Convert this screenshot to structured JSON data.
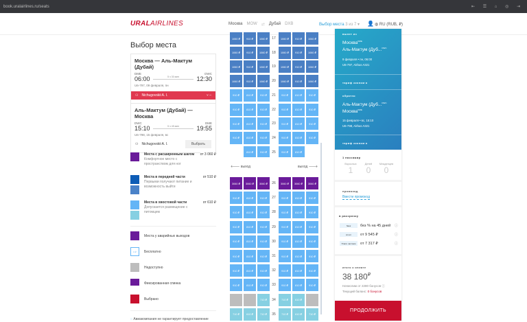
{
  "browser": {
    "url": "book.uralairlines.ru/seats",
    "icons": "⇤ ☰ ⌂ ◎ ⇥"
  },
  "header": {
    "logo_bold": "URAL",
    "logo_rest": "AIRLINES",
    "from": "Москва",
    "from_code": "MOW",
    "swap": "⇄",
    "to": "Дубай",
    "to_code": "DXB",
    "step": "Выбор места",
    "step_count": "3 из 7 ▾",
    "lang": "RU (RUB, ₽)"
  },
  "page_title": "Выбор места",
  "flights": [
    {
      "title": "Москва — Аль-Мактум (Дубай)",
      "dep_code": "DME",
      "arr_code": "DWC",
      "dep_time": "06:00",
      "arr_time": "12:30",
      "duration": "5 ч 30 мин",
      "info": "U6-797, 09 февраля, пн",
      "passenger": "Nichugovskii A. I.",
      "selected": true
    },
    {
      "title": "Аль-Мактум (Дубай) — Москва",
      "dep_code": "DWC",
      "arr_code": "DME",
      "dep_time": "15:10",
      "arr_time": "19:55",
      "duration": "5 ч 45 мин",
      "info": "U6-798, 15 февраля, вс",
      "passenger": "Nichugovskii A. I.",
      "button": "Выбрать",
      "selected": false
    }
  ],
  "legend": {
    "categories": [
      {
        "title": "Места с расширенным шагом",
        "desc": "Комфортное место с пространством для ног",
        "price": "от 3 060 ₽",
        "colors": [
          "#6a1b9a"
        ]
      },
      {
        "title": "Места в передней части",
        "desc": "Первыми получают питание и возможность выйти",
        "price": "от 510 ₽",
        "colors": [
          "#0d5cb6",
          "#4a82c8"
        ]
      },
      {
        "title": "Места в хвостовой части",
        "desc": "Допускается размещение с питомцем",
        "price": "от 610 ₽",
        "colors": [
          "#64b5f6",
          "#86d0e2"
        ]
      }
    ],
    "statuses": [
      {
        "label": "Места у аварийных выходов",
        "color": "#6a1b9a"
      },
      {
        "label": "Бесплатно",
        "color": "#ffffff",
        "mark": "0 ₽"
      },
      {
        "label": "Недоступно",
        "color": "#bdbdbd"
      },
      {
        "label": "Фиксированная спинка",
        "color": "#6a1b9a"
      },
      {
        "label": "Выбрано",
        "color": "#c8102e"
      }
    ],
    "note": "Авиакомпания не гарантирует предоставление"
  },
  "seatmap": {
    "colors": {
      "front": "#4a7fc4",
      "std": "#64b5f6",
      "exit": "#6a1b9a",
      "tail": "#86d0e2",
      "na": "#bdbdbd"
    },
    "exit_left": "выход",
    "exit_right": "выход",
    "rows_top": [
      {
        "n": "17",
        "seats": [
          [
            "front",
            "1060 ₽"
          ],
          [
            "front",
            "910 ₽"
          ],
          [
            "front",
            "1060 ₽"
          ],
          [
            "front",
            "1060 ₽"
          ],
          [
            "front",
            "910 ₽"
          ],
          [
            "front",
            "1060 ₽"
          ]
        ]
      },
      {
        "n": "18",
        "seats": [
          [
            "front",
            "1060 ₽"
          ],
          [
            "front",
            "910 ₽"
          ],
          [
            "front",
            "1060 ₽"
          ],
          [
            "front",
            "1060 ₽"
          ],
          [
            "front",
            "910 ₽"
          ],
          [
            "front",
            "1060 ₽"
          ]
        ]
      },
      {
        "n": "19",
        "seats": [
          [
            "front",
            "1060 ₽"
          ],
          [
            "front",
            "910 ₽"
          ],
          [
            "front",
            "1060 ₽"
          ],
          [
            "front",
            "1060 ₽"
          ],
          [
            "front",
            "910 ₽"
          ],
          [
            "front",
            "1060 ₽"
          ]
        ]
      },
      {
        "n": "20",
        "seats": [
          [
            "front",
            "1060 ₽"
          ],
          [
            "front",
            "910 ₽"
          ],
          [
            "front",
            "1060 ₽"
          ],
          [
            "front",
            "1060 ₽"
          ],
          [
            "front",
            "910 ₽"
          ],
          [
            "front",
            "1060 ₽"
          ]
        ]
      },
      {
        "n": "21",
        "seats": [
          [
            "std",
            "910 ₽"
          ],
          [
            "std",
            "810 ₽"
          ],
          [
            "std",
            "910 ₽"
          ],
          [
            "std",
            "910 ₽"
          ],
          [
            "std",
            "810 ₽"
          ],
          [
            "std",
            "910 ₽"
          ]
        ]
      },
      {
        "n": "22",
        "seats": [
          [
            "std",
            "910 ₽"
          ],
          [
            "std",
            "810 ₽"
          ],
          [
            "std",
            "910 ₽"
          ],
          [
            "std",
            "910 ₽"
          ],
          [
            "std",
            "810 ₽"
          ],
          [
            "std",
            "910 ₽"
          ]
        ]
      },
      {
        "n": "23",
        "seats": [
          [
            "std",
            "910 ₽"
          ],
          [
            "std",
            "810 ₽"
          ],
          [
            "std",
            "910 ₽"
          ],
          [
            "std",
            "910 ₽"
          ],
          [
            "std",
            "810 ₽"
          ],
          [
            "std",
            "910 ₽"
          ]
        ]
      },
      {
        "n": "24",
        "seats": [
          [
            "std",
            "910 ₽"
          ],
          [
            "std",
            "810 ₽"
          ],
          [
            "std",
            "910 ₽"
          ],
          [
            "std",
            "910 ₽"
          ],
          [
            "std",
            "810 ₽"
          ],
          [
            "std",
            "910 ₽"
          ]
        ]
      },
      {
        "n": "25",
        "seats": [
          null,
          [
            "std",
            "810 ₽",
            "fixed"
          ],
          [
            "std",
            "910 ₽",
            "fixed"
          ],
          [
            "std",
            "910 ₽",
            "fixed"
          ],
          [
            "std",
            "810 ₽",
            "fixed"
          ],
          null
        ]
      }
    ],
    "rows_bottom": [
      {
        "n": "26",
        "seats": [
          [
            "exit",
            "3060 ₽"
          ],
          [
            "exit",
            "3060 ₽"
          ],
          [
            "exit",
            "3060 ₽"
          ],
          [
            "exit",
            "3060 ₽"
          ],
          [
            "exit",
            "3060 ₽"
          ],
          [
            "exit",
            "3060 ₽"
          ]
        ]
      },
      {
        "n": "27",
        "seats": [
          [
            "std",
            "910 ₽"
          ],
          [
            "std",
            "810 ₽"
          ],
          [
            "std",
            "910 ₽"
          ],
          [
            "std",
            "910 ₽"
          ],
          [
            "std",
            "810 ₽"
          ],
          [
            "std",
            "910 ₽"
          ]
        ]
      },
      {
        "n": "28",
        "seats": [
          [
            "std",
            "910 ₽"
          ],
          [
            "std",
            "810 ₽"
          ],
          [
            "std",
            "910 ₽"
          ],
          [
            "std",
            "910 ₽"
          ],
          [
            "std",
            "810 ₽"
          ],
          [
            "std",
            "910 ₽"
          ]
        ]
      },
      {
        "n": "29",
        "seats": [
          [
            "std",
            "910 ₽"
          ],
          [
            "std",
            "810 ₽"
          ],
          [
            "std",
            "910 ₽"
          ],
          [
            "std",
            "910 ₽"
          ],
          [
            "std",
            "810 ₽"
          ],
          [
            "std",
            "910 ₽"
          ]
        ]
      },
      {
        "n": "30",
        "seats": [
          [
            "std",
            "910 ₽"
          ],
          [
            "std",
            "810 ₽"
          ],
          [
            "std",
            "910 ₽"
          ],
          [
            "std",
            "910 ₽"
          ],
          [
            "std",
            "810 ₽"
          ],
          [
            "std",
            "910 ₽"
          ]
        ]
      },
      {
        "n": "31",
        "seats": [
          [
            "std",
            "910 ₽"
          ],
          [
            "std",
            "810 ₽"
          ],
          [
            "std",
            "910 ₽"
          ],
          [
            "std",
            "910 ₽"
          ],
          [
            "std",
            "810 ₽"
          ],
          [
            "std",
            "910 ₽"
          ]
        ]
      },
      {
        "n": "32",
        "seats": [
          [
            "std",
            "910 ₽"
          ],
          [
            "std",
            "810 ₽"
          ],
          [
            "std",
            "910 ₽"
          ],
          [
            "std",
            "910 ₽"
          ],
          [
            "std",
            "810 ₽"
          ],
          [
            "std",
            "910 ₽"
          ]
        ]
      },
      {
        "n": "33",
        "seats": [
          [
            "std",
            "910 ₽"
          ],
          [
            "std",
            "810 ₽"
          ],
          [
            "std",
            "910 ₽"
          ],
          [
            "std",
            "910 ₽"
          ],
          [
            "std",
            "810 ₽"
          ],
          [
            "std",
            "910 ₽"
          ]
        ]
      },
      {
        "n": "34",
        "seats": [
          [
            "na",
            ""
          ],
          [
            "na",
            ""
          ],
          [
            "tail",
            "710 ₽"
          ],
          [
            "tail",
            "710 ₽"
          ],
          [
            "tail",
            "610 ₽"
          ],
          [
            "na",
            ""
          ]
        ]
      },
      {
        "n": "35",
        "seats": [
          [
            "tail",
            "710 ₽"
          ],
          [
            "tail",
            "610 ₽"
          ],
          [
            "tail",
            "710 ₽"
          ],
          [
            "tail",
            "710 ₽"
          ],
          [
            "tail",
            "610 ₽"
          ],
          [
            "tail",
            "710 ₽"
          ]
        ]
      }
    ]
  },
  "summary": {
    "out": {
      "label": "вылет из",
      "from": "Москва",
      "from_code": "DME",
      "to": "Аль-Мактум (Дуб...",
      "to_code": "DWC",
      "date": "9 февраля • пн, 06:00",
      "flight": "U6-797, Airbus A321",
      "tariff": "тариф эконом ▸"
    },
    "ret": {
      "label": "обратно",
      "from": "Аль-Мактум (Дуб...",
      "from_code": "DWC",
      "to": "Москва",
      "to_code": "DME",
      "date": "15 февраля • вс, 15:10",
      "flight": "U6-798, Airbus A321",
      "tariff": "тариф эконом ▸"
    },
    "passengers": {
      "label": "1 пассажир",
      "adults_label": "Взрослых",
      "adults": "1",
      "children_label": "Детей",
      "children": "0",
      "infants_label": "Младенцев",
      "infants": "0"
    },
    "promo": {
      "label": "промокод",
      "link": "Ввести промокод"
    },
    "installments": {
      "label": "в рассрочку",
      "items": [
        {
          "logo": "банк",
          "text": "без % на 45 дней"
        },
        {
          "logo": "сплит",
          "text": "от 9 545 ₽"
        },
        {
          "logo": "Плати частями",
          "text": "от 7 317 ₽"
        }
      ]
    },
    "total": {
      "label": "итого к оплате",
      "amount": "38 180",
      "currency": "₽",
      "bonus": "Начислим от 2280 бонусов ⓘ",
      "balance_label": "Текущий баланс:",
      "balance": "0 бонусов"
    },
    "continue": "ПРОДОЛЖИТЬ"
  }
}
